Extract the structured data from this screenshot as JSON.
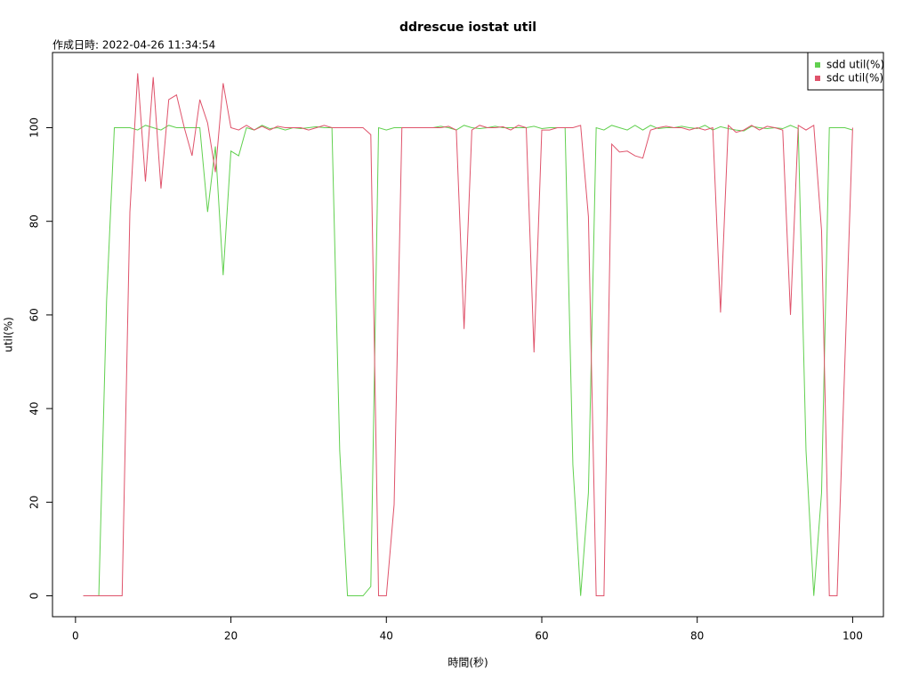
{
  "chart_data": {
    "type": "line",
    "title": "ddrescue iostat util",
    "subtitle": "作成日時: 2022-04-26 11:34:54",
    "x_label": "時間(秒)",
    "y_label": "util(%)",
    "x": [
      1,
      2,
      3,
      4,
      5,
      6,
      7,
      8,
      9,
      10,
      11,
      12,
      13,
      14,
      15,
      16,
      17,
      18,
      19,
      20,
      21,
      22,
      23,
      24,
      25,
      26,
      27,
      28,
      29,
      30,
      31,
      32,
      33,
      34,
      35,
      36,
      37,
      38,
      39,
      40,
      41,
      42,
      43,
      44,
      45,
      46,
      47,
      48,
      49,
      50,
      51,
      52,
      53,
      54,
      55,
      56,
      57,
      58,
      59,
      60,
      61,
      62,
      63,
      64,
      65,
      66,
      67,
      68,
      69,
      70,
      71,
      72,
      73,
      74,
      75,
      76,
      77,
      78,
      79,
      80,
      81,
      82,
      83,
      84,
      85,
      86,
      87,
      88,
      89,
      90,
      91,
      92,
      93,
      94,
      95,
      96,
      97,
      98,
      99,
      100
    ],
    "series": [
      {
        "name": "sdd util(%)",
        "color": "#61d04f",
        "values": [
          0,
          0,
          0,
          63,
          100,
          100,
          100,
          99.5,
          100.5,
          100,
          99.5,
          100.5,
          100,
          100,
          100,
          100,
          82,
          96,
          68.5,
          95,
          94,
          100,
          99.5,
          100.5,
          99.8,
          100,
          99.5,
          100,
          99.8,
          100,
          100.2,
          100,
          100,
          31,
          0,
          0,
          0,
          2,
          100,
          99.5,
          100,
          100,
          100,
          100,
          100,
          100,
          100.3,
          100,
          99.5,
          100.5,
          100,
          99.8,
          100,
          100.3,
          100,
          100,
          100,
          100,
          100.3,
          99.8,
          100,
          100,
          100,
          28,
          0,
          22,
          100,
          99.5,
          100.5,
          100,
          99.5,
          100.5,
          99.5,
          100.5,
          99.8,
          100,
          100,
          100.3,
          100,
          99.8,
          100.5,
          99.5,
          100.2,
          99.8,
          99.5,
          99.3,
          100.3,
          100,
          99.8,
          100,
          99.8,
          100.5,
          99.8,
          31,
          0,
          22,
          100,
          100,
          100,
          99.5
        ]
      },
      {
        "name": "sdc util(%)",
        "color": "#df536b",
        "values": [
          0,
          0,
          0,
          0,
          0,
          0,
          82,
          111.6,
          88.5,
          110.8,
          87,
          106,
          107,
          100,
          94,
          106,
          101,
          90.5,
          109.5,
          100,
          99.5,
          100.5,
          99.5,
          100.3,
          99.5,
          100.3,
          100,
          100,
          100,
          99.5,
          100,
          100.5,
          100,
          100,
          100,
          100,
          100,
          98.5,
          0,
          0,
          19.5,
          100,
          100,
          100,
          100,
          100,
          100,
          100.3,
          99.5,
          57,
          99.5,
          100.5,
          100,
          100,
          100.2,
          99.5,
          100.5,
          100,
          52,
          99.5,
          99.5,
          100,
          100,
          100,
          100.5,
          81,
          0,
          0,
          96.5,
          94.8,
          95,
          94,
          93.5,
          99.5,
          100,
          100.3,
          100,
          100,
          99.5,
          100,
          99.5,
          100,
          60.5,
          100.5,
          99,
          99.5,
          100.5,
          99.5,
          100.3,
          100,
          99.5,
          60,
          100.5,
          99.5,
          100.5,
          78,
          0,
          0,
          50,
          100
        ]
      }
    ],
    "xlim": [
      -2.96,
      103.96
    ],
    "ylim": [
      -4.46,
      116.06
    ],
    "xticks": [
      0,
      20,
      40,
      60,
      80,
      100
    ],
    "yticks": [
      0,
      20,
      40,
      60,
      80,
      100
    ],
    "legend": "top-right"
  }
}
